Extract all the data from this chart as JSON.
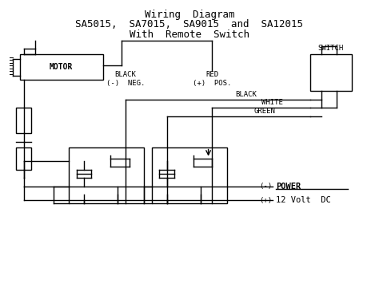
{
  "title_lines": [
    "Wiring  Diagram",
    "SA5015,  SA7015,  SA9015  and  SA12015",
    "With  Remote  Switch"
  ],
  "bg_color": "#ffffff",
  "line_color": "#000000",
  "title_fontsize": 9,
  "diagram_fontsize": 6.5,
  "fig_width": 4.74,
  "fig_height": 3.55
}
